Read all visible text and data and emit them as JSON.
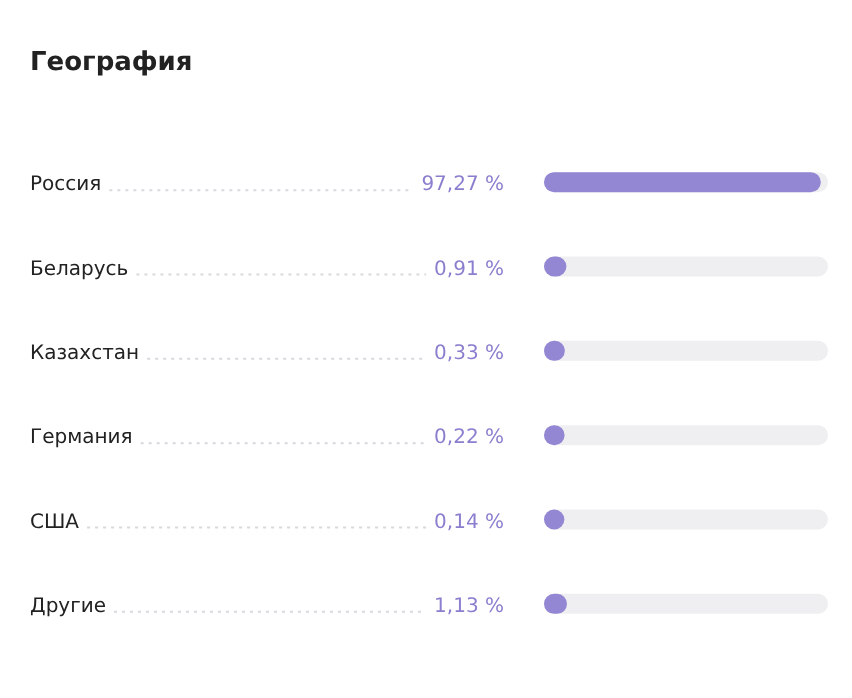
{
  "chart_data": {
    "type": "bar",
    "orientation": "horizontal",
    "title": "География",
    "categories": [
      "Россия",
      "Беларусь",
      "Казахстан",
      "Германия",
      "США",
      "Другие"
    ],
    "values": [
      97.27,
      0.91,
      0.33,
      0.22,
      0.14,
      1.13
    ],
    "value_labels": [
      "97,27 %",
      "0,91 %",
      "0,33 %",
      "0,22 %",
      "0,14 %",
      "1,13 %"
    ],
    "color": "#9387d3",
    "xlim": [
      0,
      100
    ]
  }
}
